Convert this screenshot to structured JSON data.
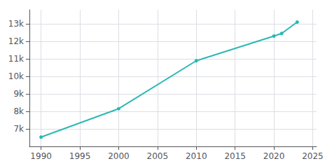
{
  "chart_data": {
    "type": "line",
    "x": [
      1990,
      2000,
      2010,
      2020,
      2021,
      2023
    ],
    "values": [
      6529,
      8152,
      10890,
      12300,
      12450,
      13100
    ],
    "color": "#2bb8b4",
    "marker": "circle",
    "xlim": [
      1988.5,
      2025.5
    ],
    "ylim": [
      6000,
      13800
    ],
    "xticks": [
      1990,
      1995,
      2000,
      2005,
      2010,
      2015,
      2020,
      2025
    ],
    "yticks": [
      {
        "value": 7000,
        "label": "7k"
      },
      {
        "value": 8000,
        "label": "8k"
      },
      {
        "value": 9000,
        "label": "9k"
      },
      {
        "value": 10000,
        "label": "10k"
      },
      {
        "value": 11000,
        "label": "11k"
      },
      {
        "value": 12000,
        "label": "12k"
      },
      {
        "value": 13000,
        "label": "13k"
      }
    ],
    "grid": true
  }
}
